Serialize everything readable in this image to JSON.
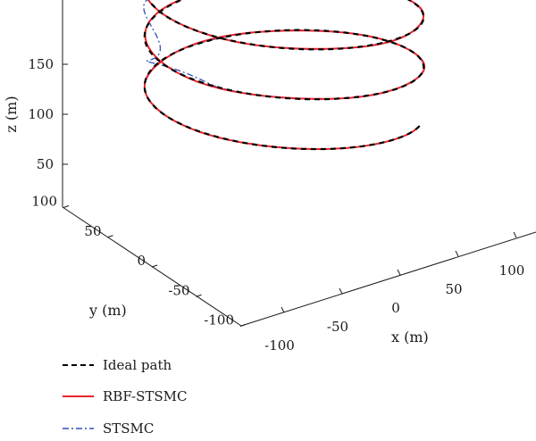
{
  "chart_data": {
    "type": "line",
    "projection": "3d",
    "title": "",
    "xlabel": "x (m)",
    "ylabel": "y (m)",
    "zlabel": "z (m)",
    "xlim": [
      -150,
      150
    ],
    "ylim": [
      -150,
      150
    ],
    "zlim": [
      0,
      200
    ],
    "xticks": [
      "-100",
      "-50",
      "0",
      "50",
      "100"
    ],
    "yticks": [
      "100",
      "50",
      "0",
      "-50",
      "-100"
    ],
    "zticks": [
      "50",
      "100",
      "150"
    ],
    "grid": false,
    "legend_position": "bottom-left",
    "curve": {
      "shape": "helix",
      "radius": 100,
      "z_start": 30,
      "z_end": 180,
      "turns": 2.9,
      "start_angle_deg": -15
    },
    "series": [
      {
        "name": "Ideal path",
        "color": "#000000",
        "style": "dashed"
      },
      {
        "name": "RBF-STSMC",
        "color": "#e8242c",
        "style": "solid"
      },
      {
        "name": "STSMC",
        "color": "#2e4fb8",
        "style": "dash-dot"
      }
    ]
  }
}
